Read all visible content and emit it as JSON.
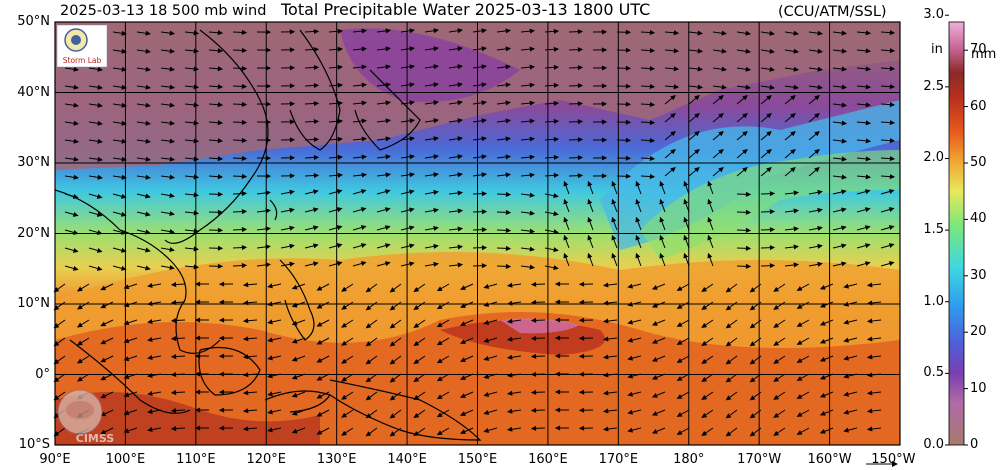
{
  "header": {
    "left_label": "2025-03-13 18 500 mb wind",
    "title": "Total Precipitable Water  2025-03-13 1800 UTC",
    "right_label": "(CCU/ATM/SSL)"
  },
  "map": {
    "lon_labels": [
      "90°E",
      "100°E",
      "110°E",
      "120°E",
      "130°E",
      "140°E",
      "150°E",
      "160°E",
      "170°E",
      "180°",
      "170°W",
      "160°W",
      "150°W"
    ],
    "lat_labels": [
      "50°N",
      "40°N",
      "30°N",
      "20°N",
      "10°N",
      "0°",
      "10°S"
    ],
    "logos": {
      "top_left": "Storm Lab",
      "bottom_left": "CIMSS"
    }
  },
  "colorbar": {
    "mm_unit": "mm",
    "in_unit": "in",
    "mm_ticks": [
      "70",
      "60",
      "50",
      "40",
      "30",
      "20",
      "10",
      "0"
    ],
    "in_ticks": [
      "3.0",
      "2.5",
      "2.0",
      "1.5",
      "1.0",
      "0.5",
      "0.0"
    ],
    "range_mm": [
      0,
      75
    ],
    "colors": [
      "#a87a6e",
      "#b06aa6",
      "#7a3fb0",
      "#4f5fd8",
      "#2f9cf0",
      "#3fd8e0",
      "#7ce87a",
      "#e8e85a",
      "#f0a832",
      "#e85a1e",
      "#b8301e",
      "#8a2a2a",
      "#c86898",
      "#f0b0d8"
    ]
  }
}
